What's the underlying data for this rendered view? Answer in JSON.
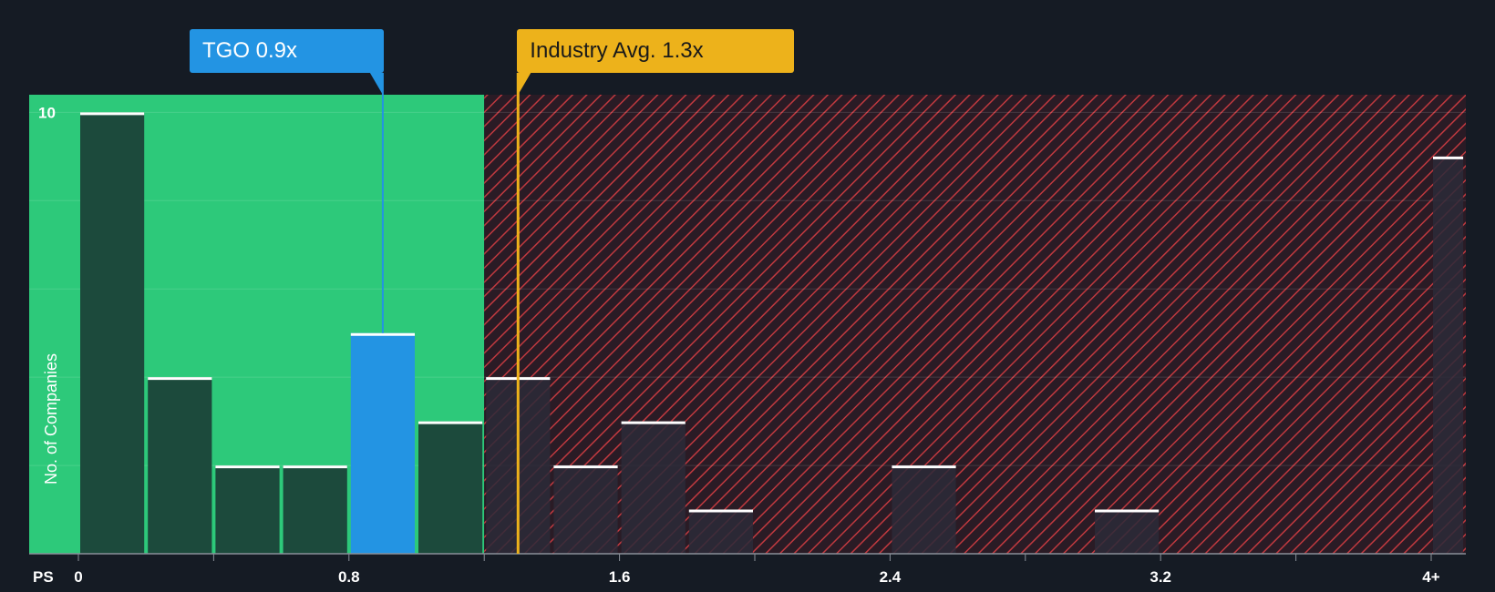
{
  "chart_data": {
    "type": "bar",
    "xlabel": "PS",
    "ylabel": "No. of Companies",
    "x_ticks": [
      "0",
      "0.8",
      "1.6",
      "2.4",
      "3.2",
      "4+"
    ],
    "y_ticks": [
      "10"
    ],
    "xlim": [
      0,
      4.1
    ],
    "ylim": [
      0,
      10.4
    ],
    "bins": [
      {
        "x0": 0.0,
        "x1": 0.2,
        "value": 10
      },
      {
        "x0": 0.2,
        "x1": 0.4,
        "value": 4
      },
      {
        "x0": 0.4,
        "x1": 0.6,
        "value": 2
      },
      {
        "x0": 0.6,
        "x1": 0.8,
        "value": 2
      },
      {
        "x0": 0.8,
        "x1": 1.0,
        "value": 5,
        "highlight": true
      },
      {
        "x0": 1.0,
        "x1": 1.2,
        "value": 3
      },
      {
        "x0": 1.2,
        "x1": 1.4,
        "value": 4
      },
      {
        "x0": 1.4,
        "x1": 1.6,
        "value": 2
      },
      {
        "x0": 1.6,
        "x1": 1.8,
        "value": 3
      },
      {
        "x0": 1.8,
        "x1": 2.0,
        "value": 1
      },
      {
        "x0": 2.4,
        "x1": 2.6,
        "value": 2
      },
      {
        "x0": 3.0,
        "x1": 3.2,
        "value": 1
      },
      {
        "x0": 4.0,
        "x1": 4.1,
        "value": 9
      }
    ],
    "company": {
      "label": "TGO 0.9x",
      "value": 0.9
    },
    "industry_avg": {
      "label": "Industry Avg. 1.3x",
      "value": 1.3
    },
    "fair_value_threshold": 1.2
  },
  "colors": {
    "background": "#151b24",
    "undervalued_zone": "#2dc97a",
    "overvalued_zone": "#2a1b25",
    "hatch": "#c0393f",
    "bar_normal": "#1c4a3c",
    "bar_highlight": "#2394e3",
    "bar_overvalued": "#2c2a38",
    "company_marker": "#2394e3",
    "industry_marker": "#edb21b",
    "bar_cap": "#ffffff"
  }
}
